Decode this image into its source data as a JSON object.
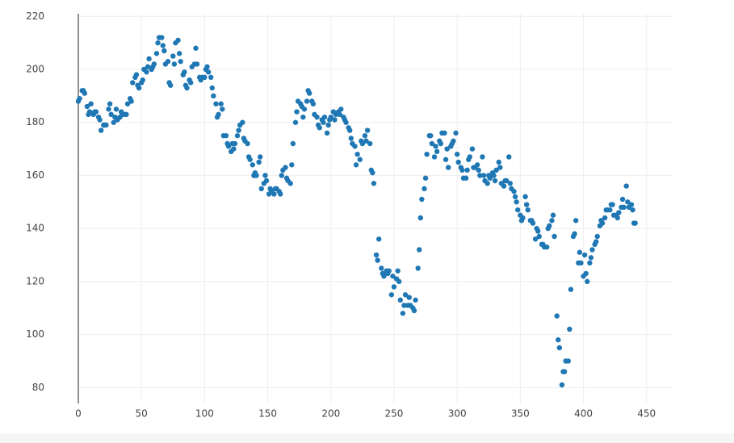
{
  "chart_data": {
    "type": "scatter",
    "color": "#1f77b4",
    "grid": true,
    "xlim": [
      0,
      470
    ],
    "ylim": [
      74,
      221
    ],
    "xticks": [
      0,
      50,
      100,
      150,
      200,
      250,
      300,
      350,
      400,
      450
    ],
    "yticks": [
      80,
      100,
      120,
      140,
      160,
      180,
      200,
      220
    ],
    "x": [
      0,
      1,
      3,
      4,
      5,
      7,
      8,
      9,
      10,
      12,
      13,
      14,
      16,
      17,
      18,
      20,
      21,
      22,
      24,
      25,
      26,
      28,
      29,
      30,
      31,
      33,
      34,
      35,
      37,
      38,
      39,
      41,
      42,
      43,
      45,
      46,
      47,
      48,
      50,
      51,
      52,
      54,
      55,
      56,
      58,
      59,
      60,
      62,
      63,
      64,
      66,
      67,
      68,
      69,
      71,
      72,
      73,
      75,
      76,
      77,
      79,
      80,
      81,
      83,
      84,
      85,
      86,
      88,
      89,
      90,
      92,
      93,
      94,
      96,
      97,
      98,
      100,
      101,
      102,
      103,
      105,
      106,
      107,
      109,
      110,
      111,
      113,
      114,
      115,
      117,
      118,
      119,
      121,
      122,
      123,
      124,
      126,
      127,
      128,
      130,
      131,
      132,
      134,
      135,
      136,
      138,
      139,
      140,
      141,
      143,
      144,
      145,
      147,
      148,
      149,
      151,
      152,
      153,
      155,
      156,
      157,
      159,
      160,
      161,
      162,
      164,
      165,
      166,
      168,
      169,
      170,
      172,
      173,
      174,
      176,
      177,
      178,
      179,
      181,
      182,
      183,
      185,
      186,
      187,
      189,
      190,
      191,
      193,
      194,
      195,
      197,
      198,
      199,
      200,
      202,
      203,
      204,
      206,
      207,
      208,
      210,
      211,
      212,
      214,
      215,
      216,
      217,
      219,
      220,
      221,
      223,
      224,
      225,
      227,
      228,
      229,
      231,
      232,
      233,
      234,
      236,
      237,
      238,
      240,
      241,
      242,
      244,
      245,
      246,
      248,
      249,
      250,
      252,
      253,
      254,
      255,
      257,
      258,
      259,
      261,
      262,
      263,
      265,
      266,
      267,
      269,
      270,
      271,
      272,
      274,
      275,
      276,
      278,
      279,
      280,
      282,
      283,
      284,
      286,
      287,
      288,
      290,
      291,
      292,
      293,
      295,
      296,
      297,
      299,
      300,
      301,
      303,
      304,
      305,
      307,
      308,
      309,
      310,
      312,
      313,
      314,
      316,
      317,
      318,
      320,
      321,
      322,
      324,
      325,
      326,
      328,
      329,
      330,
      331,
      333,
      334,
      335,
      337,
      338,
      339,
      341,
      342,
      343,
      345,
      346,
      347,
      348,
      350,
      351,
      352,
      354,
      355,
      356,
      358,
      359,
      360,
      362,
      363,
      364,
      365,
      367,
      368,
      369,
      371,
      372,
      373,
      375,
      376,
      377,
      379,
      380,
      381,
      383,
      384,
      385,
      386,
      388,
      389,
      390,
      392,
      393,
      394,
      396,
      397,
      398,
      400,
      401,
      402,
      403,
      405,
      406,
      407,
      409,
      410,
      411,
      413,
      414,
      415,
      417,
      418,
      419,
      421,
      422,
      423,
      424,
      426,
      427,
      428,
      430,
      431,
      432,
      434,
      435,
      436,
      438,
      439,
      440,
      441
    ],
    "values": [
      188,
      189,
      192,
      192,
      191,
      186,
      183,
      184,
      187,
      183,
      184,
      184,
      182,
      181,
      177,
      179,
      179,
      179,
      185,
      187,
      183,
      180,
      182,
      185,
      181,
      182,
      184,
      183,
      183,
      183,
      187,
      189,
      188,
      195,
      197,
      198,
      194,
      193,
      195,
      196,
      200,
      199,
      201,
      204,
      200,
      201,
      202,
      206,
      210,
      212,
      212,
      209,
      207,
      202,
      203,
      195,
      194,
      205,
      202,
      210,
      211,
      206,
      203,
      198,
      199,
      194,
      193,
      196,
      195,
      201,
      202,
      208,
      202,
      197,
      196,
      197,
      197,
      200,
      201,
      199,
      197,
      193,
      190,
      187,
      182,
      183,
      187,
      185,
      175,
      175,
      172,
      171,
      169,
      172,
      170,
      172,
      175,
      177,
      179,
      180,
      174,
      173,
      172,
      167,
      166,
      164,
      160,
      161,
      160,
      165,
      167,
      155,
      157,
      160,
      158,
      153,
      155,
      154,
      153,
      155,
      155,
      154,
      153,
      160,
      162,
      163,
      159,
      158,
      157,
      164,
      172,
      180,
      184,
      188,
      187,
      186,
      182,
      185,
      188,
      192,
      191,
      188,
      187,
      183,
      182,
      179,
      178,
      181,
      180,
      182,
      176,
      179,
      181,
      182,
      184,
      181,
      183,
      184,
      183,
      185,
      182,
      181,
      180,
      178,
      177,
      174,
      172,
      171,
      164,
      168,
      166,
      173,
      172,
      175,
      173,
      177,
      172,
      162,
      161,
      157,
      130,
      128,
      136,
      125,
      123,
      122,
      124,
      123,
      124,
      115,
      122,
      118,
      121,
      124,
      120,
      113,
      108,
      111,
      115,
      111,
      114,
      111,
      110,
      109,
      113,
      125,
      132,
      144,
      151,
      155,
      159,
      168,
      175,
      175,
      172,
      167,
      171,
      169,
      173,
      172,
      176,
      176,
      166,
      170,
      163,
      171,
      172,
      173,
      176,
      168,
      165,
      163,
      162,
      159,
      159,
      162,
      166,
      167,
      170,
      163,
      163,
      164,
      162,
      160,
      167,
      160,
      158,
      157,
      160,
      159,
      161,
      160,
      158,
      162,
      165,
      163,
      157,
      156,
      158,
      158,
      167,
      157,
      155,
      154,
      152,
      150,
      147,
      145,
      143,
      144,
      152,
      149,
      147,
      143,
      143,
      142,
      136,
      140,
      139,
      137,
      134,
      134,
      133,
      133,
      140,
      141,
      143,
      145,
      137,
      107,
      98,
      95,
      81,
      86,
      86,
      90,
      90,
      102,
      117,
      137,
      138,
      143,
      127,
      131,
      127,
      122,
      130,
      123,
      120,
      127,
      129,
      132,
      134,
      135,
      137,
      141,
      143,
      142,
      144,
      147,
      147,
      147,
      149,
      149,
      145,
      145,
      144,
      146,
      148,
      151,
      148,
      156,
      150,
      148,
      149,
      147,
      142,
      142
    ]
  }
}
